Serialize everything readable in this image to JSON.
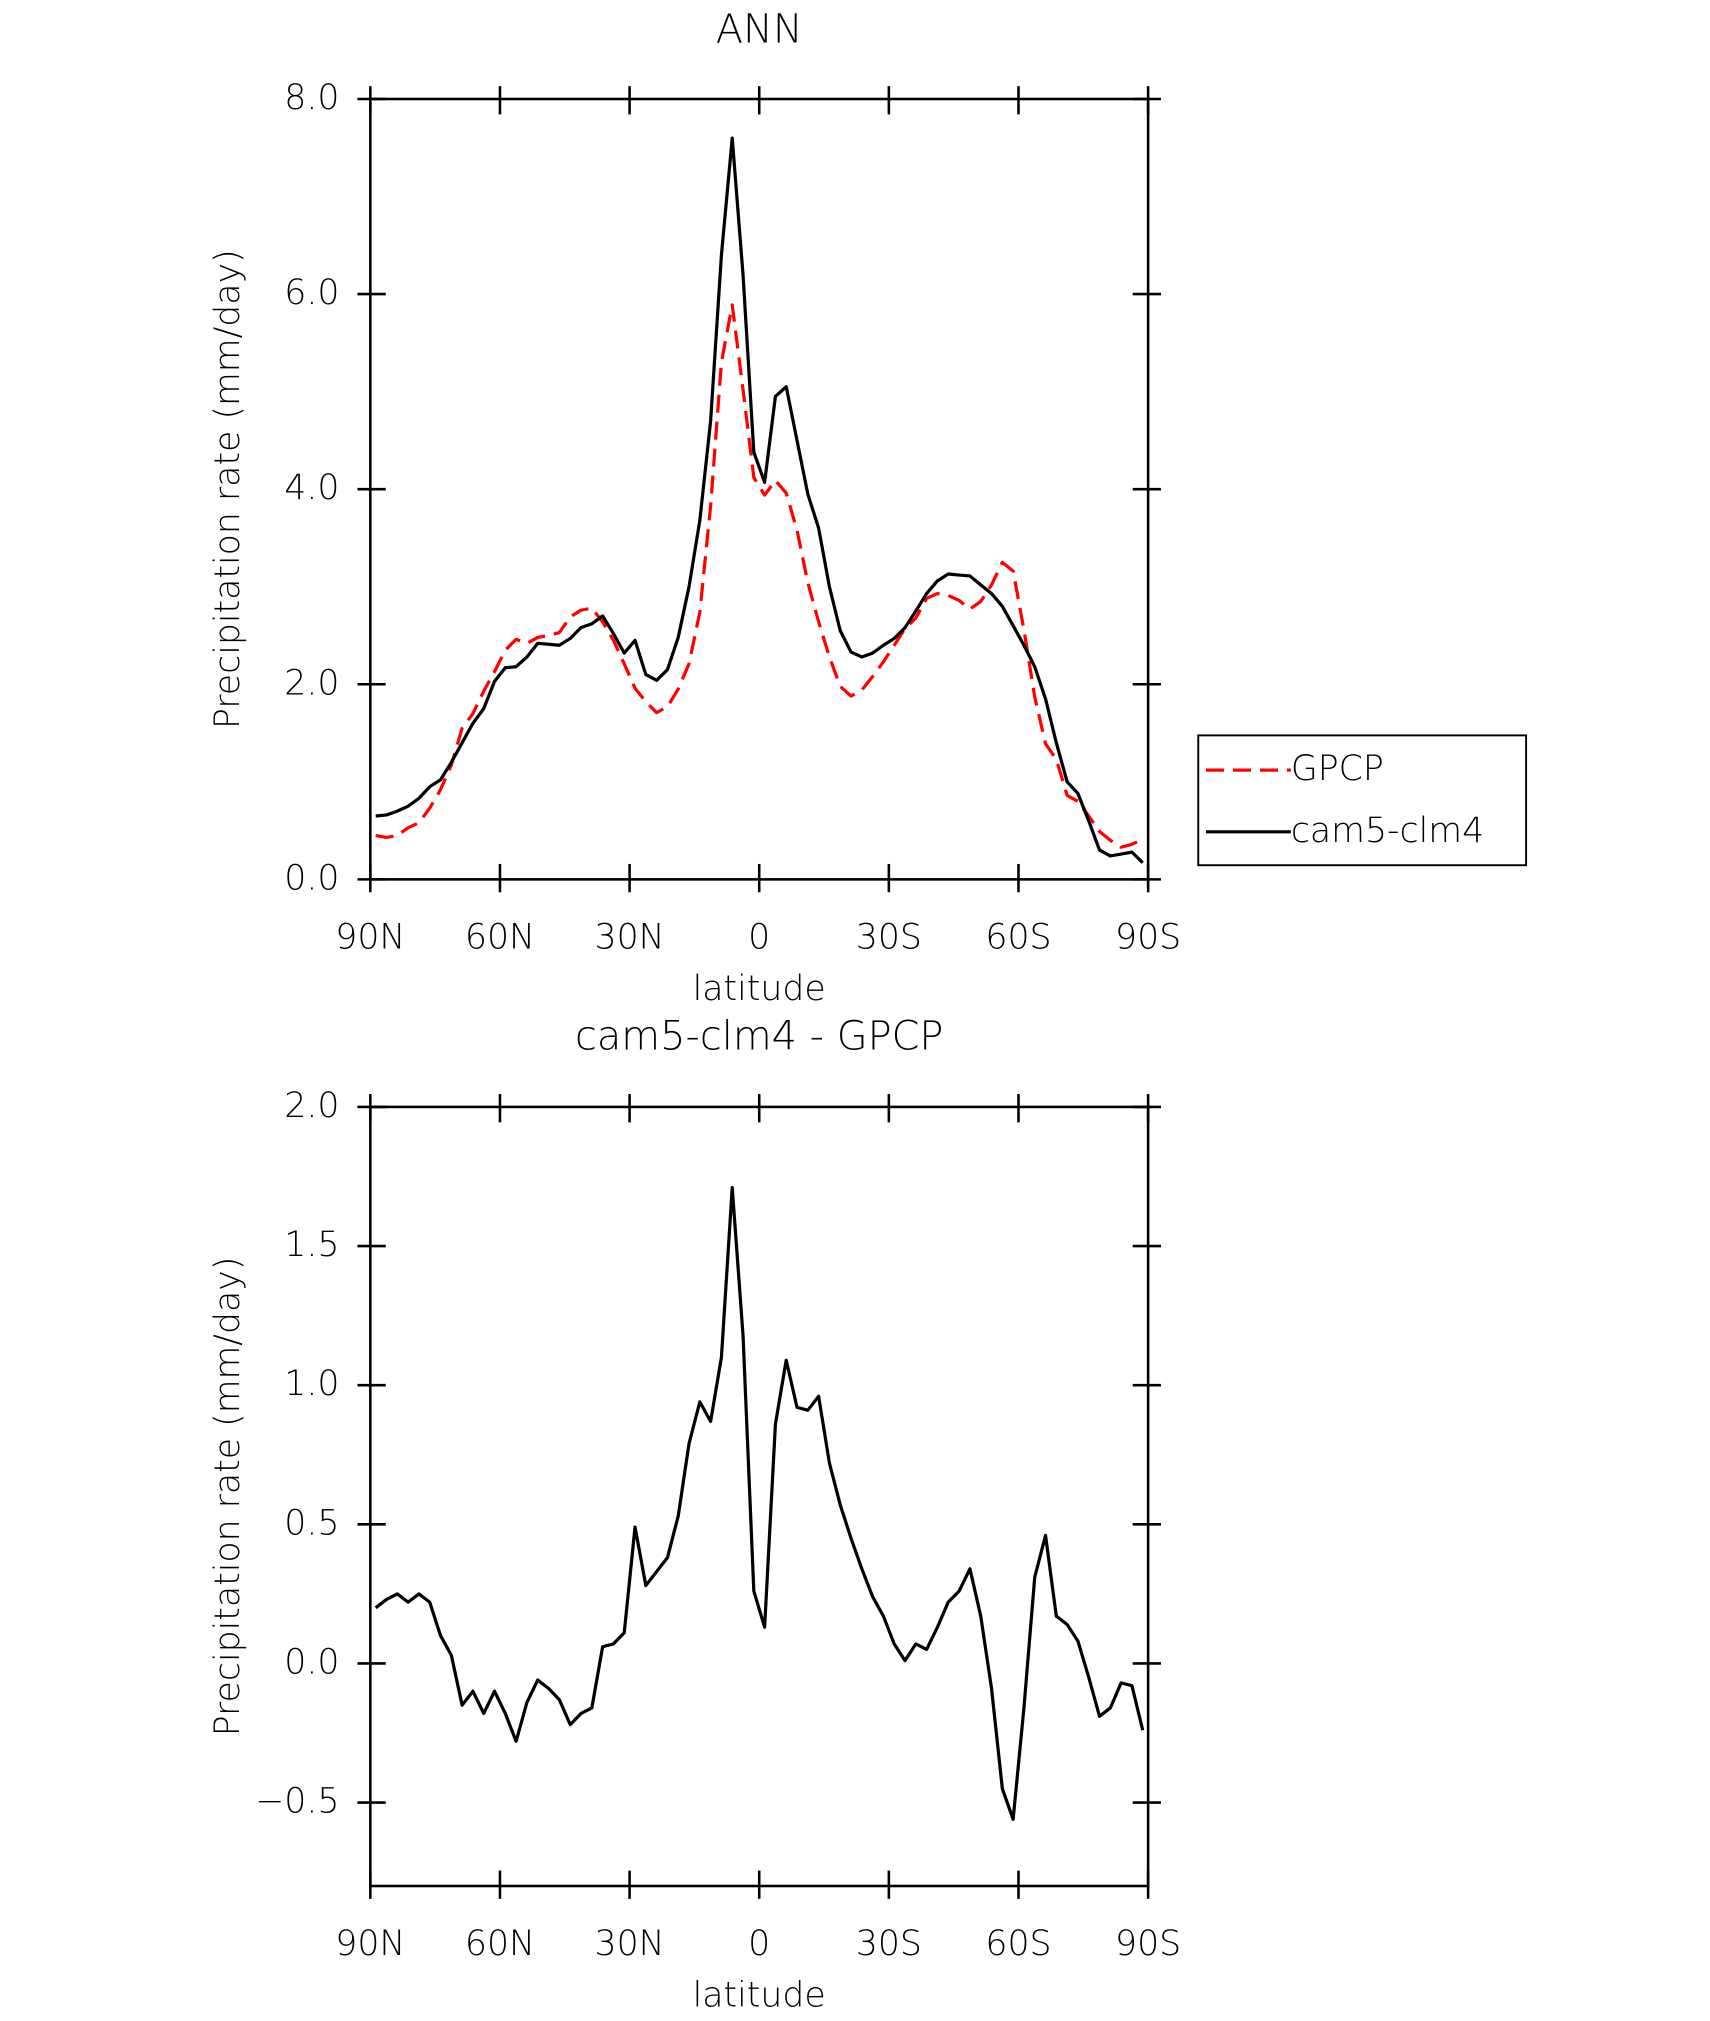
{
  "chart_data": [
    {
      "type": "line",
      "title": "ANN",
      "xlabel": "latitude",
      "ylabel": "Precipitation rate (mm/day)",
      "x": [
        88.75,
        86.25,
        83.75,
        81.25,
        78.75,
        76.25,
        73.75,
        71.25,
        68.75,
        66.25,
        63.75,
        61.25,
        58.75,
        56.25,
        53.75,
        51.25,
        48.75,
        46.25,
        43.75,
        41.25,
        38.75,
        36.25,
        33.75,
        31.25,
        28.75,
        26.25,
        23.75,
        21.25,
        18.75,
        16.25,
        13.75,
        11.25,
        8.75,
        6.25,
        3.75,
        1.25,
        -1.25,
        -3.75,
        -6.25,
        -8.75,
        -11.25,
        -13.75,
        -16.25,
        -18.75,
        -21.25,
        -23.75,
        -26.25,
        -28.75,
        -31.25,
        -33.75,
        -36.25,
        -38.75,
        -41.25,
        -43.75,
        -46.25,
        -48.75,
        -51.25,
        -53.75,
        -56.25,
        -58.75,
        -61.25,
        -63.75,
        -66.25,
        -68.75,
        -71.25,
        -73.75,
        -76.25,
        -78.75,
        -81.25,
        -83.75,
        -86.25,
        -88.75
      ],
      "xlim": [
        90,
        -90
      ],
      "xticks": [
        {
          "value": 90,
          "label": "90N"
        },
        {
          "value": 60,
          "label": "60N"
        },
        {
          "value": 30,
          "label": "30N"
        },
        0,
        {
          "value": -30,
          "label": "30S"
        },
        {
          "value": -60,
          "label": "60S"
        },
        {
          "value": -90,
          "label": "90S"
        }
      ],
      "ylim": [
        0,
        8
      ],
      "yticks": [
        {
          "value": 0,
          "label": "0.0"
        },
        {
          "value": 2,
          "label": "2.0"
        },
        {
          "value": 4,
          "label": "4.0"
        },
        {
          "value": 6,
          "label": "6.0"
        },
        {
          "value": 8,
          "label": "8.0"
        }
      ],
      "legend": "right",
      "series": [
        {
          "name": "GPCP",
          "color": "#ff0000",
          "line_style": "dashed",
          "values": [
            0.45,
            0.43,
            0.45,
            0.53,
            0.58,
            0.73,
            0.92,
            1.17,
            1.55,
            1.7,
            1.93,
            2.13,
            2.35,
            2.46,
            2.42,
            2.48,
            2.5,
            2.53,
            2.69,
            2.76,
            2.78,
            2.64,
            2.45,
            2.21,
            1.96,
            1.82,
            1.71,
            1.77,
            1.95,
            2.21,
            2.74,
            3.83,
            5.3,
            5.89,
            5.02,
            4.12,
            3.94,
            4.09,
            3.96,
            3.58,
            3.04,
            2.64,
            2.28,
            1.98,
            1.88,
            1.94,
            2.08,
            2.23,
            2.4,
            2.57,
            2.68,
            2.88,
            2.93,
            2.91,
            2.86,
            2.77,
            2.85,
            3.02,
            3.25,
            3.16,
            2.56,
            1.87,
            1.39,
            1.23,
            0.86,
            0.8,
            0.65,
            0.49,
            0.4,
            0.33,
            0.36,
            0.41
          ]
        },
        {
          "name": "cam5-clm4",
          "color": "#000000",
          "line_style": "solid",
          "values": [
            0.65,
            0.66,
            0.7,
            0.75,
            0.83,
            0.95,
            1.02,
            1.2,
            1.4,
            1.6,
            1.75,
            2.03,
            2.17,
            2.18,
            2.28,
            2.42,
            2.41,
            2.4,
            2.47,
            2.58,
            2.62,
            2.7,
            2.52,
            2.32,
            2.45,
            2.1,
            2.04,
            2.15,
            2.48,
            3.0,
            3.68,
            4.7,
            6.4,
            7.6,
            6.2,
            4.38,
            4.07,
            4.95,
            5.05,
            4.5,
            3.95,
            3.6,
            3.0,
            2.55,
            2.33,
            2.28,
            2.32,
            2.4,
            2.47,
            2.58,
            2.75,
            2.93,
            3.06,
            3.13,
            3.12,
            3.11,
            3.02,
            2.93,
            2.8,
            2.6,
            2.4,
            2.18,
            1.85,
            1.4,
            1.0,
            0.88,
            0.6,
            0.3,
            0.24,
            0.26,
            0.28,
            0.17
          ]
        }
      ]
    },
    {
      "type": "line",
      "title": "cam5-clm4 - GPCP",
      "xlabel": "latitude",
      "ylabel": "Precipitation rate (mm/day)",
      "x": [
        88.75,
        86.25,
        83.75,
        81.25,
        78.75,
        76.25,
        73.75,
        71.25,
        68.75,
        66.25,
        63.75,
        61.25,
        58.75,
        56.25,
        53.75,
        51.25,
        48.75,
        46.25,
        43.75,
        41.25,
        38.75,
        36.25,
        33.75,
        31.25,
        28.75,
        26.25,
        23.75,
        21.25,
        18.75,
        16.25,
        13.75,
        11.25,
        8.75,
        6.25,
        3.75,
        1.25,
        -1.25,
        -3.75,
        -6.25,
        -8.75,
        -11.25,
        -13.75,
        -16.25,
        -18.75,
        -21.25,
        -23.75,
        -26.25,
        -28.75,
        -31.25,
        -33.75,
        -36.25,
        -38.75,
        -41.25,
        -43.75,
        -46.25,
        -48.75,
        -51.25,
        -53.75,
        -56.25,
        -58.75,
        -61.25,
        -63.75,
        -66.25,
        -68.75,
        -71.25,
        -73.75,
        -76.25,
        -78.75,
        -81.25,
        -83.75,
        -86.25,
        -88.75
      ],
      "xlim": [
        90,
        -90
      ],
      "xticks": [
        {
          "value": 90,
          "label": "90N"
        },
        {
          "value": 60,
          "label": "60N"
        },
        {
          "value": 30,
          "label": "30N"
        },
        0,
        {
          "value": -30,
          "label": "30S"
        },
        {
          "value": -60,
          "label": "60S"
        },
        {
          "value": -90,
          "label": "90S"
        }
      ],
      "ylim": [
        -0.8,
        2.0
      ],
      "yticks": [
        {
          "value": -0.5,
          "label": "−0.5"
        },
        {
          "value": 0,
          "label": "0.0"
        },
        0.5,
        {
          "value": 1,
          "label": "1.0"
        },
        1.5,
        {
          "value": 2,
          "label": "2.0"
        }
      ],
      "series": [
        {
          "color": "#000000",
          "line_style": "solid",
          "values": [
            0.2,
            0.23,
            0.25,
            0.22,
            0.25,
            0.22,
            0.1,
            0.03,
            -0.15,
            -0.1,
            -0.18,
            -0.1,
            -0.18,
            -0.28,
            -0.14,
            -0.06,
            -0.09,
            -0.13,
            -0.22,
            -0.18,
            -0.16,
            0.06,
            0.07,
            0.11,
            0.49,
            0.28,
            0.33,
            0.38,
            0.53,
            0.79,
            0.94,
            0.87,
            1.1,
            1.71,
            1.18,
            0.26,
            0.13,
            0.86,
            1.09,
            0.92,
            0.91,
            0.96,
            0.72,
            0.57,
            0.45,
            0.34,
            0.24,
            0.17,
            0.07,
            0.01,
            0.07,
            0.05,
            0.13,
            0.22,
            0.26,
            0.34,
            0.17,
            -0.09,
            -0.45,
            -0.56,
            -0.16,
            0.31,
            0.46,
            0.17,
            0.14,
            0.08,
            -0.05,
            -0.19,
            -0.16,
            -0.07,
            -0.08,
            -0.24
          ]
        }
      ]
    }
  ]
}
